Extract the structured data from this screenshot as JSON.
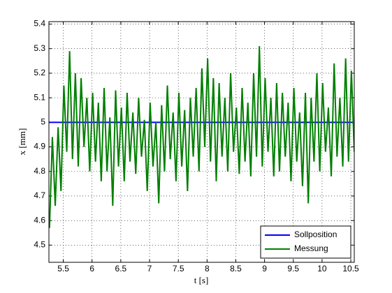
{
  "chart_data": {
    "type": "line",
    "xlabel": "t [s]",
    "ylabel": "x [mm]",
    "xlim": [
      5.25,
      10.56
    ],
    "ylim": [
      4.43,
      5.41
    ],
    "xticks": [
      5.5,
      6,
      6.5,
      7,
      7.5,
      8,
      8.5,
      9,
      9.5,
      10,
      10.5
    ],
    "yticks": [
      4.5,
      4.6,
      4.7,
      4.8,
      4.9,
      5,
      5.1,
      5.2,
      5.3,
      5.4
    ],
    "grid": true,
    "legend": "lower right",
    "series": [
      {
        "name": "Sollposition",
        "color": "#0000ff",
        "x": [
          5.25,
          10.56
        ],
        "values": [
          5,
          5
        ]
      },
      {
        "name": "Messung",
        "color": "#007f00",
        "x": [
          5.26,
          5.31,
          5.36,
          5.41,
          5.46,
          5.51,
          5.56,
          5.61,
          5.66,
          5.71,
          5.76,
          5.81,
          5.86,
          5.91,
          5.96,
          6.01,
          6.06,
          6.11,
          6.16,
          6.21,
          6.26,
          6.31,
          6.36,
          6.41,
          6.46,
          6.51,
          6.56,
          6.61,
          6.66,
          6.71,
          6.76,
          6.81,
          6.86,
          6.91,
          6.96,
          7.01,
          7.06,
          7.11,
          7.16,
          7.21,
          7.26,
          7.31,
          7.36,
          7.41,
          7.46,
          7.51,
          7.56,
          7.61,
          7.66,
          7.71,
          7.76,
          7.81,
          7.86,
          7.91,
          7.96,
          8.01,
          8.06,
          8.11,
          8.16,
          8.21,
          8.26,
          8.31,
          8.36,
          8.41,
          8.46,
          8.51,
          8.56,
          8.61,
          8.66,
          8.71,
          8.76,
          8.81,
          8.86,
          8.91,
          8.96,
          9.01,
          9.06,
          9.11,
          9.16,
          9.21,
          9.26,
          9.31,
          9.36,
          9.41,
          9.46,
          9.51,
          9.56,
          9.61,
          9.66,
          9.71,
          9.76,
          9.81,
          9.86,
          9.91,
          9.96,
          10.01,
          10.06,
          10.11,
          10.16,
          10.21,
          10.26,
          10.31,
          10.36,
          10.41,
          10.46,
          10.51,
          10.56
        ],
        "values": [
          4.57,
          4.94,
          4.66,
          4.98,
          4.72,
          5.15,
          4.88,
          5.29,
          4.85,
          5.2,
          4.82,
          5.18,
          4.9,
          5.1,
          4.8,
          5.12,
          4.84,
          5.08,
          4.76,
          5.14,
          4.8,
          5.02,
          4.66,
          5.13,
          4.82,
          5.06,
          4.76,
          5.12,
          4.84,
          5.04,
          4.79,
          5.1,
          4.86,
          5.01,
          4.72,
          5.08,
          4.82,
          5,
          4.67,
          5.07,
          4.8,
          5.15,
          4.85,
          5.04,
          4.76,
          5.12,
          4.82,
          5.05,
          4.72,
          5.1,
          4.86,
          5.14,
          4.8,
          5.22,
          4.9,
          5.26,
          4.84,
          5.18,
          4.76,
          5.16,
          4.86,
          5.1,
          4.8,
          5.2,
          4.88,
          5.06,
          4.79,
          5.14,
          4.84,
          5.08,
          4.78,
          5.2,
          4.86,
          5.31,
          4.82,
          5.18,
          4.88,
          5.1,
          4.78,
          5.16,
          4.8,
          5.12,
          4.86,
          5.08,
          4.76,
          5.14,
          4.84,
          5.04,
          4.74,
          5.12,
          4.67,
          5.1,
          4.84,
          5.2,
          4.8,
          5.16,
          4.88,
          5.06,
          4.78,
          5.24,
          4.86,
          5.1,
          4.82,
          5.26,
          4.84,
          5.21,
          4.88
        ]
      }
    ]
  }
}
